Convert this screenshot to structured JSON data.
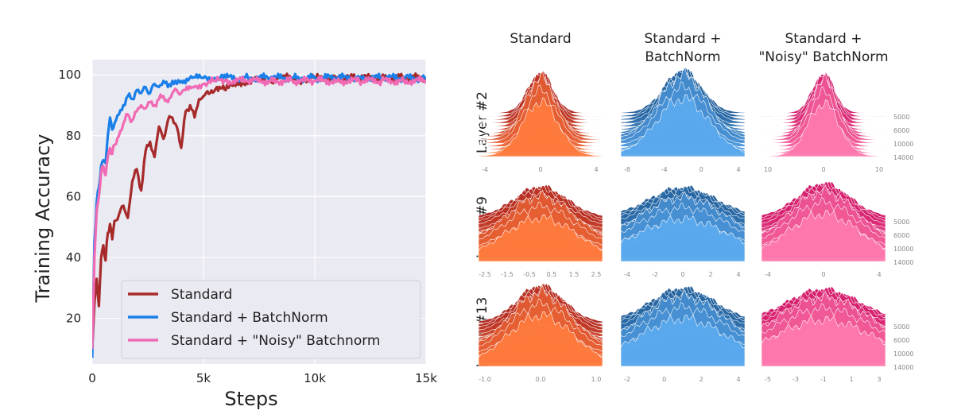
{
  "chart_data": [
    {
      "type": "line",
      "xlabel": "Steps",
      "ylabel": "Training Accuracy",
      "xlim": [
        0,
        15000
      ],
      "ylim": [
        5,
        105
      ],
      "xticks": [
        {
          "v": 0,
          "label": "0"
        },
        {
          "v": 5000,
          "label": "5k"
        },
        {
          "v": 10000,
          "label": "10k"
        },
        {
          "v": 15000,
          "label": "15k"
        }
      ],
      "yticks": [
        {
          "v": 20,
          "label": "20"
        },
        {
          "v": 40,
          "label": "40"
        },
        {
          "v": 60,
          "label": "60"
        },
        {
          "v": 80,
          "label": "80"
        },
        {
          "v": 100,
          "label": "100"
        }
      ],
      "grid": true,
      "legend_position": "bottom-right",
      "series": [
        {
          "name": "Standard",
          "color": "#a62a2a",
          "x": [
            0,
            100,
            200,
            300,
            400,
            500,
            600,
            700,
            800,
            900,
            1000,
            1200,
            1400,
            1600,
            1800,
            2000,
            2200,
            2400,
            2600,
            2800,
            3000,
            3200,
            3400,
            3600,
            3800,
            4000,
            4200,
            4400,
            4600,
            4800,
            5000,
            5300,
            5600,
            6000,
            6500,
            7000,
            7500,
            8000,
            8500,
            9000,
            9500,
            10000,
            11000,
            12000,
            13000,
            14000,
            15000
          ],
          "y": [
            10,
            25,
            33,
            24,
            40,
            44,
            39,
            48,
            51,
            46,
            52,
            54,
            57,
            53,
            65,
            69,
            62,
            75,
            78,
            73,
            83,
            79,
            85,
            86,
            83,
            76,
            88,
            90,
            86,
            92,
            93,
            94,
            96,
            95,
            98,
            97,
            99,
            98,
            99,
            99,
            98,
            99,
            99,
            99,
            99,
            99,
            99
          ]
        },
        {
          "name": "Standard + BatchNorm",
          "color": "#1a7fe8",
          "x": [
            0,
            100,
            200,
            300,
            400,
            500,
            600,
            700,
            800,
            900,
            1000,
            1200,
            1400,
            1600,
            1800,
            2000,
            2200,
            2400,
            2600,
            2800,
            3000,
            3200,
            3400,
            3600,
            3800,
            4000,
            4500,
            5000,
            5500,
            6000,
            7000,
            8000,
            9000,
            10000,
            11000,
            12000,
            13000,
            14000,
            15000
          ],
          "y": [
            7,
            45,
            58,
            63,
            70,
            72,
            71,
            80,
            86,
            82,
            84,
            87,
            90,
            93,
            92,
            95,
            94,
            96,
            94,
            97,
            96,
            98,
            96,
            98,
            97,
            98,
            99,
            99,
            99,
            99,
            99,
            99,
            99,
            99,
            99,
            99,
            99,
            99,
            99
          ]
        },
        {
          "name": "Standard + \"Noisy\" Batchnorm",
          "color": "#f06ab4",
          "x": [
            0,
            100,
            200,
            300,
            400,
            500,
            600,
            700,
            800,
            900,
            1000,
            1200,
            1400,
            1600,
            1800,
            2000,
            2200,
            2400,
            2600,
            2800,
            3000,
            3200,
            3400,
            3600,
            3800,
            4000,
            4500,
            5000,
            5500,
            6000,
            7000,
            8000,
            9000,
            10000,
            11000,
            12000,
            13000,
            14000,
            15000
          ],
          "y": [
            10,
            40,
            55,
            60,
            68,
            70,
            67,
            73,
            76,
            74,
            77,
            80,
            84,
            87,
            85,
            88,
            90,
            89,
            91,
            90,
            92,
            93,
            91,
            94,
            95,
            94,
            96,
            97,
            98,
            98,
            98,
            98,
            98,
            98,
            98,
            98,
            98,
            98,
            98
          ]
        }
      ]
    },
    {
      "type": "ridgeline-histogram",
      "columns": [
        "Standard",
        "Standard +\nBatchNorm",
        "Standard +\n\"Noisy\" BatchNorm"
      ],
      "column_colors": [
        "#b0251f",
        "#1f5c98",
        "#d11466"
      ],
      "rows": [
        {
          "label": "Layer #2",
          "xticks": [
            [
              "-4",
              "0",
              "4"
            ],
            [
              "-8",
              "-4",
              "0",
              "4"
            ],
            [
              "10",
              "0",
              "10"
            ]
          ],
          "step_labels": [
            "5000",
            "6000",
            "10000",
            "14000"
          ]
        },
        {
          "label": "Layer #9",
          "xticks": [
            [
              "-2.5",
              "-1.5",
              "-0.5",
              "0.5",
              "1.5",
              "2.5"
            ],
            [
              "-4",
              "-2",
              "0",
              "2",
              "4"
            ],
            [
              "-4",
              "0",
              "4"
            ]
          ],
          "step_labels": [
            "5000",
            "6000",
            "10000",
            "14000"
          ]
        },
        {
          "label": "Layer #13",
          "xticks": [
            [
              "-1.0",
              "0.0",
              "1.0"
            ],
            [
              "-2",
              "0",
              "2",
              "4"
            ],
            [
              "-5",
              "-3",
              "-1",
              "1",
              "3"
            ]
          ],
          "step_labels": [
            "5000",
            "6000",
            "10000",
            "14000"
          ]
        }
      ]
    }
  ]
}
